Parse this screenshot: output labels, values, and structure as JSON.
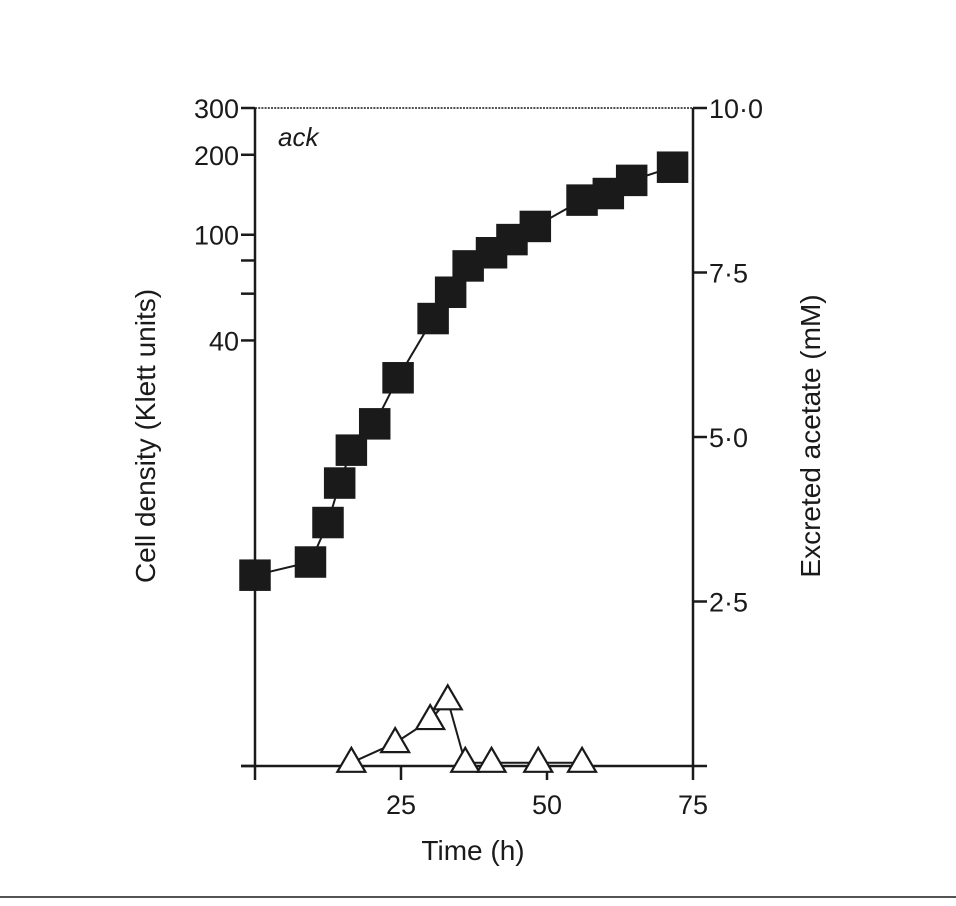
{
  "chart_data": {
    "type": "line",
    "panel_label": "ack",
    "xlabel": "Time (h)",
    "ylabel_left": "Cell density (Klett units)",
    "ylabel_right": "Excreted acetate (mM)",
    "xlim": [
      0,
      75
    ],
    "ylim_left": [
      1,
      300
    ],
    "ylim_left_scale": "log",
    "ylim_right": [
      0,
      10
    ],
    "x_ticks": [
      {
        "value": 0,
        "label": ""
      },
      {
        "value": 25,
        "label": "25"
      },
      {
        "value": 50,
        "label": "50"
      },
      {
        "value": 75,
        "label": "75"
      }
    ],
    "y_left_ticks": [
      {
        "value": 1,
        "label": ""
      },
      {
        "value": 40,
        "label": "40"
      },
      {
        "value": 60,
        "label": ""
      },
      {
        "value": 80,
        "label": ""
      },
      {
        "value": 100,
        "label": "100"
      },
      {
        "value": 200,
        "label": "200"
      },
      {
        "value": 300,
        "label": "300"
      }
    ],
    "y_right_ticks": [
      {
        "value": 2.5,
        "label": "2·5"
      },
      {
        "value": 5,
        "label": "5·0"
      },
      {
        "value": 7.5,
        "label": "7·5"
      },
      {
        "value": 10,
        "label": "10·0"
      }
    ],
    "grid": false,
    "series": [
      {
        "axis": "left",
        "marker": "filled-square",
        "x": [
          0,
          9.5,
          12.5,
          14.5,
          16.5,
          20.5,
          24.5,
          30.5,
          33.5,
          36.5,
          40.5,
          44,
          48,
          56,
          60.5,
          64.5,
          71.5
        ],
        "y": [
          2.9,
          3.1,
          3.7,
          4.3,
          4.8,
          5.2,
          5.9,
          6.8,
          7.2,
          7.6,
          7.8,
          8.0,
          8.2,
          8.6,
          8.7,
          8.9,
          9.1
        ]
      },
      {
        "axis": "right",
        "marker": "open-triangle",
        "x": [
          16.5,
          24,
          30,
          33,
          36,
          40.5,
          48.5,
          56
        ],
        "y": [
          0.05,
          0.35,
          0.7,
          1.0,
          0.05,
          0.05,
          0.05,
          0.05
        ]
      }
    ]
  }
}
